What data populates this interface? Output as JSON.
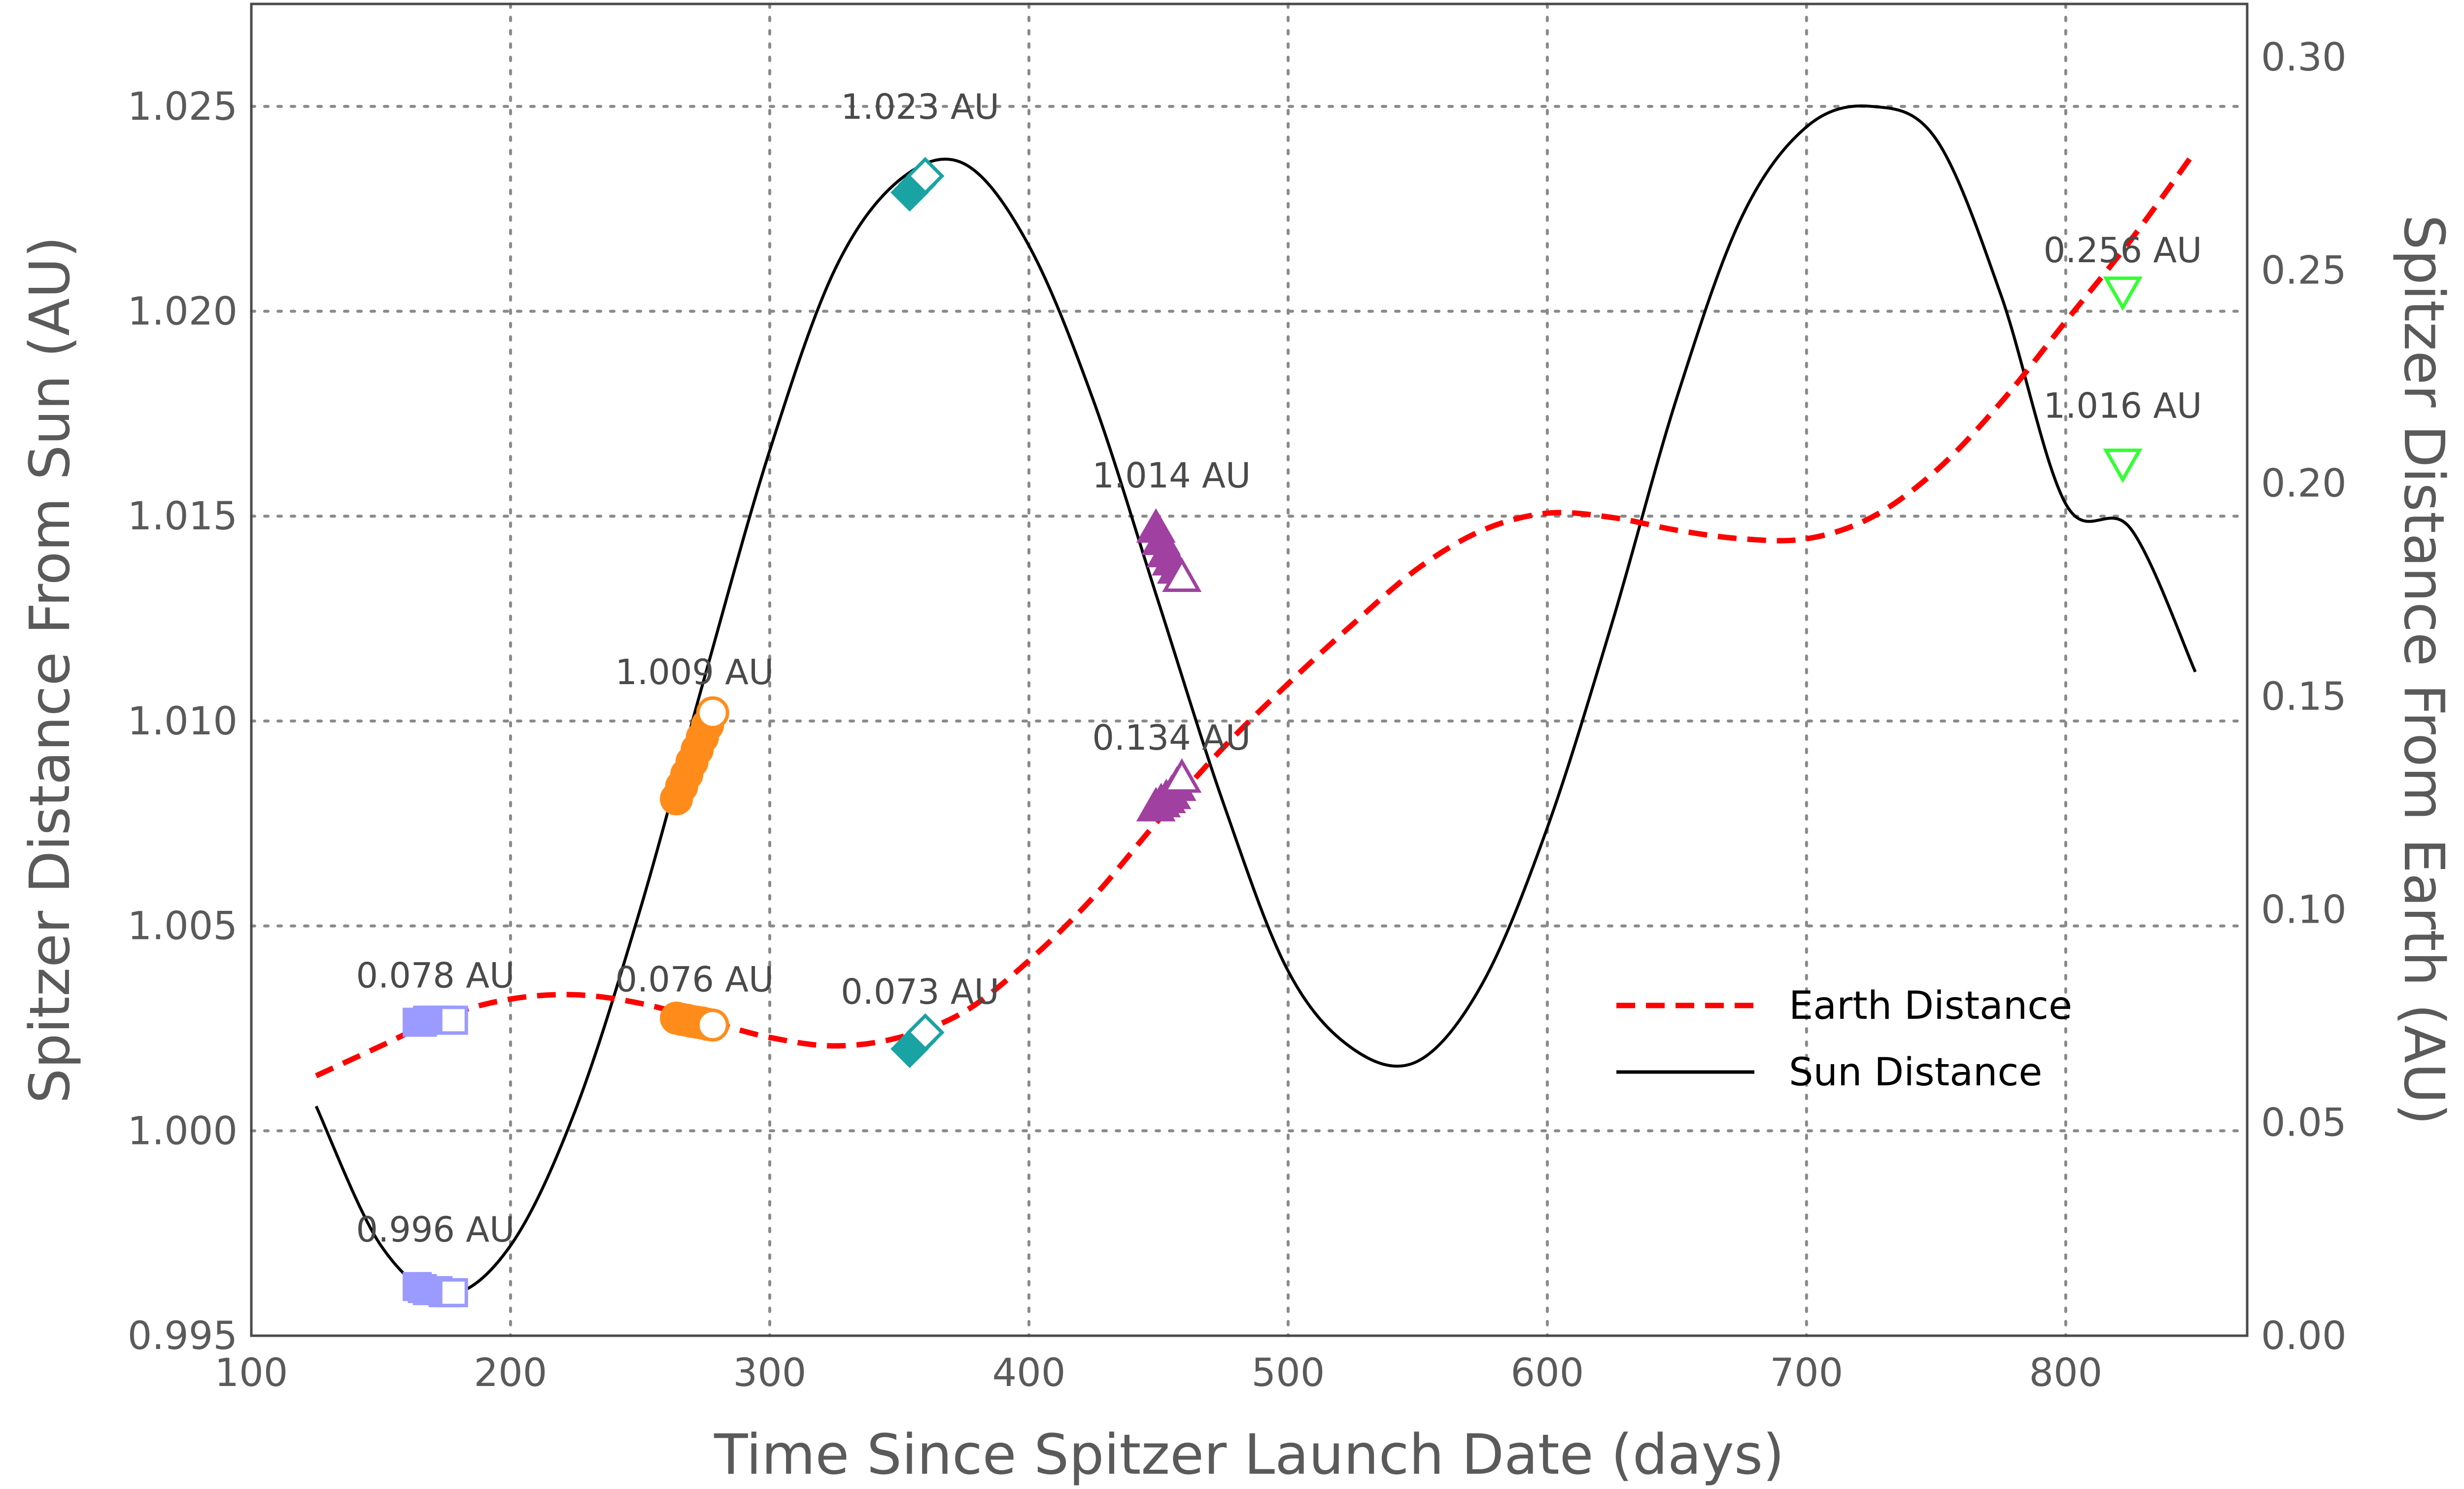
{
  "chart_data": {
    "type": "line",
    "xlabel": "Time Since Spitzer Launch Date (days)",
    "ylabel_left": "Spitzer Distance From Sun (AU)",
    "ylabel_right": "Spitzer Distance From Earth (AU)",
    "xlim": [
      100,
      870
    ],
    "ylim_left": [
      0.995,
      1.0275
    ],
    "ylim_right": [
      0.0,
      0.3125
    ],
    "x_ticks": [
      "100",
      "200",
      "300",
      "400",
      "500",
      "600",
      "700",
      "800"
    ],
    "x_tick_values": [
      100,
      200,
      300,
      400,
      500,
      600,
      700,
      800
    ],
    "y_left_ticks": [
      "0.995",
      "1.000",
      "1.005",
      "1.010",
      "1.015",
      "1.020",
      "1.025"
    ],
    "y_left_tick_values": [
      0.995,
      1.0,
      1.005,
      1.01,
      1.015,
      1.02,
      1.025
    ],
    "y_right_ticks": [
      "0.00",
      "0.05",
      "0.10",
      "0.15",
      "0.20",
      "0.25",
      "0.30"
    ],
    "y_right_tick_values": [
      0.0,
      0.05,
      0.1,
      0.15,
      0.2,
      0.25,
      0.3
    ],
    "grid": true,
    "legend_position": "lower-right",
    "series": [
      {
        "name": "Earth Distance",
        "axis": "right",
        "style": "dashed",
        "color": "#ff0000",
        "x": [
          125,
          150,
          175,
          200,
          225,
          250,
          275,
          300,
          325,
          350,
          375,
          400,
          425,
          450,
          475,
          500,
          525,
          550,
          575,
          600,
          625,
          650,
          675,
          700,
          725,
          750,
          775,
          800,
          825,
          850
        ],
        "y": [
          0.061,
          0.068,
          0.075,
          0.079,
          0.08,
          0.078,
          0.074,
          0.07,
          0.068,
          0.07,
          0.076,
          0.088,
          0.103,
          0.121,
          0.138,
          0.153,
          0.167,
          0.18,
          0.189,
          0.193,
          0.192,
          0.189,
          0.187,
          0.187,
          0.192,
          0.203,
          0.219,
          0.238,
          0.257,
          0.278
        ]
      },
      {
        "name": "Sun Distance",
        "axis": "left",
        "style": "solid",
        "color": "#000000",
        "x": [
          125,
          150,
          175,
          200,
          225,
          250,
          275,
          300,
          325,
          350,
          375,
          400,
          425,
          450,
          475,
          500,
          525,
          550,
          575,
          600,
          625,
          650,
          675,
          700,
          725,
          750,
          775,
          800,
          825,
          850
        ],
        "y": [
          1.0006,
          0.9972,
          0.996,
          0.9972,
          1.0005,
          1.0054,
          1.0111,
          1.0166,
          1.021,
          1.0232,
          1.0236,
          1.0216,
          1.0178,
          1.0129,
          1.008,
          1.0039,
          1.002,
          1.0017,
          1.0036,
          1.0074,
          1.0124,
          1.0179,
          1.0223,
          1.0245,
          1.025,
          1.0242,
          1.0204,
          1.0153,
          1.0147,
          1.0112
        ]
      }
    ],
    "marker_groups": [
      {
        "name": "blue-squares-sun",
        "marker": "square",
        "color": "#9a9aff",
        "axis": "left",
        "x": [
          164,
          166,
          168,
          170,
          172,
          174,
          176,
          178
        ],
        "y": [
          0.9962,
          0.99615,
          0.9961,
          0.9961,
          0.9961,
          0.99605,
          0.99605,
          0.99605
        ]
      },
      {
        "name": "blue-squares-earth",
        "marker": "square",
        "color": "#9a9aff",
        "axis": "left",
        "x": [
          164,
          166,
          168,
          170,
          172,
          174,
          176,
          178
        ],
        "y": [
          1.00265,
          1.00265,
          1.0027,
          1.0027,
          1.0027,
          1.0027,
          1.0027,
          1.0027
        ]
      },
      {
        "name": "orange-circles-sun",
        "marker": "circle",
        "color": "#ff8c1a",
        "axis": "left",
        "x": [
          264,
          266,
          268,
          270,
          272,
          274,
          276,
          278
        ],
        "y": [
          1.0081,
          1.0084,
          1.0087,
          1.009,
          1.0093,
          1.0096,
          1.0099,
          1.0102
        ]
      },
      {
        "name": "orange-circles-earth",
        "marker": "circle",
        "color": "#ff8c1a",
        "axis": "left",
        "x": [
          264,
          266,
          268,
          270,
          272,
          274,
          276,
          278
        ],
        "y": [
          1.00275,
          1.00272,
          1.0027,
          1.00267,
          1.00265,
          1.00263,
          1.0026,
          1.00258
        ]
      },
      {
        "name": "teal-diamonds-sun",
        "marker": "diamond",
        "color": "#1aa3a3",
        "axis": "left",
        "x": [
          354,
          357,
          360
        ],
        "y": [
          1.0229,
          1.0231,
          1.0233
        ]
      },
      {
        "name": "teal-diamonds-earth",
        "marker": "diamond",
        "color": "#1aa3a3",
        "axis": "left",
        "x": [
          354,
          357,
          360
        ],
        "y": [
          1.002,
          1.0022,
          1.0024
        ]
      },
      {
        "name": "purple-triangles-sun",
        "marker": "triangle-up",
        "color": "#a040a0",
        "axis": "left",
        "x": [
          449,
          451,
          453,
          455,
          457,
          459
        ],
        "y": [
          1.0147,
          1.0144,
          1.0141,
          1.0139,
          1.0137,
          1.0135
        ]
      },
      {
        "name": "purple-triangles-earth",
        "marker": "triangle-up",
        "color": "#a040a0",
        "axis": "left",
        "x": [
          449,
          451,
          453,
          455,
          457,
          459
        ],
        "y": [
          1.0079,
          1.008,
          1.0081,
          1.0082,
          1.0084,
          1.0086
        ]
      },
      {
        "name": "green-triangles-earth",
        "marker": "triangle-down",
        "color": "#33ff33",
        "axis": "left",
        "x": [
          822
        ],
        "y": [
          1.0205
        ]
      },
      {
        "name": "green-triangles-sun",
        "marker": "triangle-down",
        "color": "#33ff33",
        "axis": "left",
        "x": [
          822
        ],
        "y": [
          1.0163
        ]
      }
    ],
    "annotations": [
      {
        "text": "1.023 AU",
        "x": 358,
        "y": 1.0247
      },
      {
        "text": "1.014 AU",
        "x": 455,
        "y": 1.0157
      },
      {
        "text": "1.009 AU",
        "x": 271,
        "y": 1.0109
      },
      {
        "text": "0.996 AU",
        "x": 171,
        "y": 0.9973
      },
      {
        "text": "0.078 AU",
        "x": 171,
        "y": 1.0035
      },
      {
        "text": "0.076 AU",
        "x": 271,
        "y": 1.0034
      },
      {
        "text": "0.073 AU",
        "x": 358,
        "y": 1.0031
      },
      {
        "text": "0.134 AU",
        "x": 455,
        "y": 1.0093
      },
      {
        "text": "0.256 AU",
        "x": 822,
        "y": 1.0212
      },
      {
        "text": "1.016 AU",
        "x": 822,
        "y": 1.0174
      }
    ]
  }
}
